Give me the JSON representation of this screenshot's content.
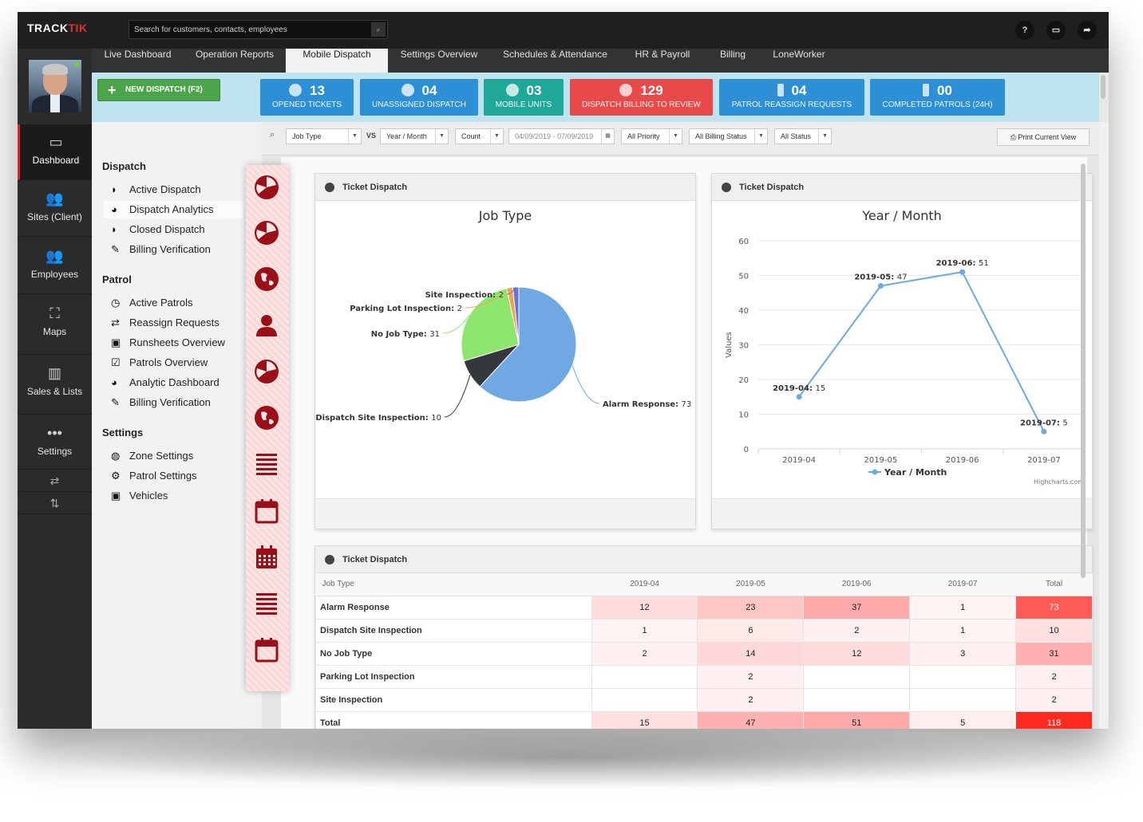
{
  "app": {
    "logo_prefix": "TRACK",
    "logo_suffix": "TIK"
  },
  "search": {
    "placeholder": "Search for customers, contacts, employees"
  },
  "top_icons": [
    {
      "name": "help-icon",
      "glyph": "?"
    },
    {
      "name": "monitor-icon",
      "glyph": "▭"
    },
    {
      "name": "logout-icon",
      "glyph": "➦"
    }
  ],
  "left_nav": [
    {
      "label": "Dashboard",
      "icon": "monitor-icon",
      "glyph": "▭",
      "active": true
    },
    {
      "label": "Sites (Client)",
      "icon": "group-icon",
      "glyph": "👥"
    },
    {
      "label": "Employees",
      "icon": "employees-icon",
      "glyph": "👥"
    },
    {
      "label": "Maps",
      "icon": "map-icon",
      "glyph": "⛶"
    },
    {
      "label": "Sales & Lists",
      "icon": "bar-chart-icon",
      "glyph": "▥"
    },
    {
      "label": "Settings",
      "icon": "more-icon",
      "glyph": "•••"
    }
  ],
  "left_nav_extra": [
    {
      "name": "swap-horizontal-icon",
      "glyph": "⇄"
    },
    {
      "name": "swap-vertical-icon",
      "glyph": "⇅"
    }
  ],
  "tabs": [
    "Live Dashboard",
    "Operation Reports",
    "Mobile Dispatch",
    "Settings Overview",
    "Schedules & Attendance",
    "HR & Payroll",
    "Billing",
    "LoneWorker"
  ],
  "active_tab": "Mobile Dispatch",
  "new_dispatch_label": "NEW DISPATCH (F2)",
  "stats": [
    {
      "value": "13",
      "label": "OPENED TICKETS",
      "color": "#2d8fd5"
    },
    {
      "value": "04",
      "label": "UNASSIGNED DISPATCH",
      "color": "#2d8fd5"
    },
    {
      "value": "03",
      "label": "MOBILE UNITS",
      "color": "#1fa79a"
    },
    {
      "value": "129",
      "label": "DISPATCH BILLING TO REVIEW",
      "color": "#e84a4a"
    },
    {
      "value": "04",
      "label": "PATROL REASSIGN REQUESTS",
      "color": "#2d8fd5"
    },
    {
      "value": "00",
      "label": "COMPLETED PATROLS (24H)",
      "color": "#2d8fd5"
    }
  ],
  "subnav": {
    "sections": [
      {
        "title": "Dispatch",
        "items": [
          {
            "label": "Active Dispatch",
            "icon": "dispatch-icon",
            "glyph": "◗"
          },
          {
            "label": "Dispatch Analytics",
            "icon": "pie-chart-icon",
            "glyph": "◕",
            "active": true
          },
          {
            "label": "Closed Dispatch",
            "icon": "dispatch-closed-icon",
            "glyph": "◗"
          },
          {
            "label": "Billing Verification",
            "icon": "pencil-icon",
            "glyph": "✎"
          }
        ]
      },
      {
        "title": "Patrol",
        "items": [
          {
            "label": "Active Patrols",
            "icon": "clock-icon",
            "glyph": "◷"
          },
          {
            "label": "Reassign Requests",
            "icon": "arrows-icon",
            "glyph": "⇄"
          },
          {
            "label": "Runsheets Overview",
            "icon": "car-icon",
            "glyph": "▣"
          },
          {
            "label": "Patrols Overview",
            "icon": "checkbox-icon",
            "glyph": "☑"
          },
          {
            "label": "Analytic Dashboard",
            "icon": "dashboard-icon",
            "glyph": "◕"
          },
          {
            "label": "Billing Verification",
            "icon": "pencil-icon",
            "glyph": "✎"
          }
        ]
      },
      {
        "title": "Settings",
        "items": [
          {
            "label": "Zone Settings",
            "icon": "globe-icon",
            "glyph": "◍"
          },
          {
            "label": "Patrol Settings",
            "icon": "gear-icon",
            "glyph": "⚙"
          },
          {
            "label": "Vehicles",
            "icon": "car-icon",
            "glyph": "▣"
          }
        ]
      }
    ]
  },
  "icon_strip": [
    "dispatch-icon",
    "dispatch-icon",
    "globe-icon",
    "user-icon",
    "dispatch-icon",
    "globe-icon",
    "list-icon",
    "calendar-icon",
    "calendar-grid-icon",
    "list-icon",
    "calendar-icon"
  ],
  "filters": {
    "search_glyph": "⌕",
    "job_type": "Job Type",
    "vs": "VS",
    "year_month": "Year / Month",
    "count": "Count",
    "date_range": "04/09/2019 - 07/09/2019",
    "priority": "All Priority",
    "billing_status": "All Billing Status",
    "status": "All Status",
    "print": "Print Current View"
  },
  "panels": {
    "pie_header": "Ticket Dispatch",
    "line_header": "Ticket Dispatch",
    "table_header": "Ticket Dispatch"
  },
  "chart_data": [
    {
      "type": "pie",
      "title": "Job Type",
      "slices": [
        {
          "label": "Alarm Response",
          "value": 73,
          "color": "#6fa8e3"
        },
        {
          "label": "Dispatch Site Inspection",
          "value": 10,
          "color": "#34373b"
        },
        {
          "label": "No Job Type",
          "value": 31,
          "color": "#8ee56e"
        },
        {
          "label": "Parking Lot Inspection",
          "value": 2,
          "color": "#f0a34a"
        },
        {
          "label": "Site Inspection",
          "value": 2,
          "color": "#6a74d8"
        }
      ]
    },
    {
      "type": "line",
      "title": "Year / Month",
      "ylabel": "Values",
      "ylim": [
        0,
        60
      ],
      "yticks": [
        0,
        10,
        20,
        30,
        40,
        50,
        60
      ],
      "categories": [
        "2019-04",
        "2019-05",
        "2019-06",
        "2019-07"
      ],
      "series": [
        {
          "name": "Year / Month",
          "values": [
            15,
            47,
            51,
            5
          ],
          "color": "#6fa8e3"
        }
      ],
      "credits": "Highcharts.com",
      "legend": "bottom-center",
      "grid": true
    }
  ],
  "table": {
    "columns": [
      "Job Type",
      "2019-04",
      "2019-05",
      "2019-06",
      "2019-07",
      "Total"
    ],
    "rows": [
      {
        "label": "Alarm Response",
        "cells": [
          "12",
          "23",
          "37",
          "1",
          "73"
        ]
      },
      {
        "label": "Dispatch Site Inspection",
        "cells": [
          "1",
          "6",
          "2",
          "1",
          "10"
        ]
      },
      {
        "label": "No Job Type",
        "cells": [
          "2",
          "14",
          "12",
          "3",
          "31"
        ]
      },
      {
        "label": "Parking Lot Inspection",
        "cells": [
          "",
          "2",
          "",
          "",
          "2"
        ]
      },
      {
        "label": "Site Inspection",
        "cells": [
          "",
          "2",
          "",
          "",
          "2"
        ]
      }
    ],
    "total_row": {
      "label": "Total",
      "cells": [
        "15",
        "47",
        "51",
        "5",
        "118"
      ]
    }
  }
}
